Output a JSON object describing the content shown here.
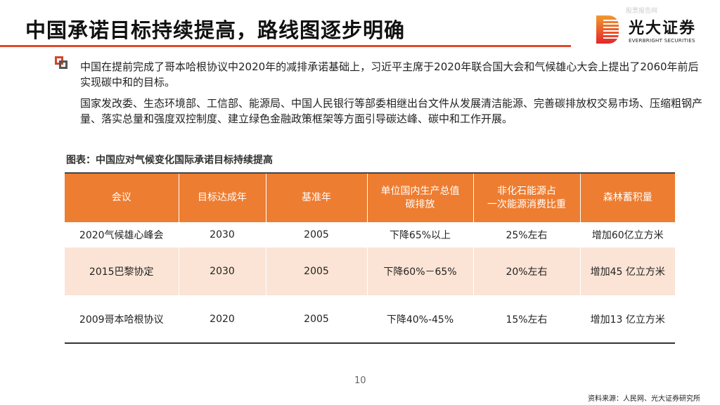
{
  "header": {
    "title": "中国承诺目标持续提高，路线图逐步明确",
    "watermark": "股票报告网",
    "logo": {
      "cn": "光大证券",
      "en": "EVERBRIGHT SECURITIES"
    }
  },
  "body": {
    "bullet_icon": "square-bullet-icon",
    "paragraphs": [
      "中国在提前完成了哥本哈根协议中2020年的减排承诺基础上，习近平主席于2020年联合国大会和气候雄心大会上提出了2060年前后实现碳中和的目标。",
      "国家发改委、生态环境部、工信部、能源局、中国人民银行等部委相继出台文件从发展清洁能源、完善碳排放权交易市场、压缩粗钢产量、落实总量和强度双控制度、建立绿色金融政策框架等方面引导碳达峰、碳中和工作开展。"
    ]
  },
  "table": {
    "caption": "图表：中国应对气候变化国际承诺目标持续提高",
    "headers": [
      "会议",
      "目标达成年",
      "基准年",
      "单位国内生产总值\n碳排放",
      "非化石能源占\n一次能源消费比重",
      "森林蓄积量"
    ],
    "rows": [
      [
        "2020气候雄心峰会",
        "2030",
        "2005",
        "下降65%以上",
        "25%左右",
        "增加60亿立方米"
      ],
      [
        "2015巴黎协定",
        "2030",
        "2005",
        "下降60%－65%",
        "20%左右",
        "增加45 亿立方米"
      ],
      [
        "2009哥本哈根协议",
        "2020",
        "2005",
        "下降40%-45%",
        "15%左右",
        "增加13 亿立方米"
      ]
    ],
    "header_color": "#ed7d31",
    "stripe_color": "#fbe4d5"
  },
  "footer": {
    "page": "10",
    "source": "资料来源：人民网、光大证券研究所"
  }
}
